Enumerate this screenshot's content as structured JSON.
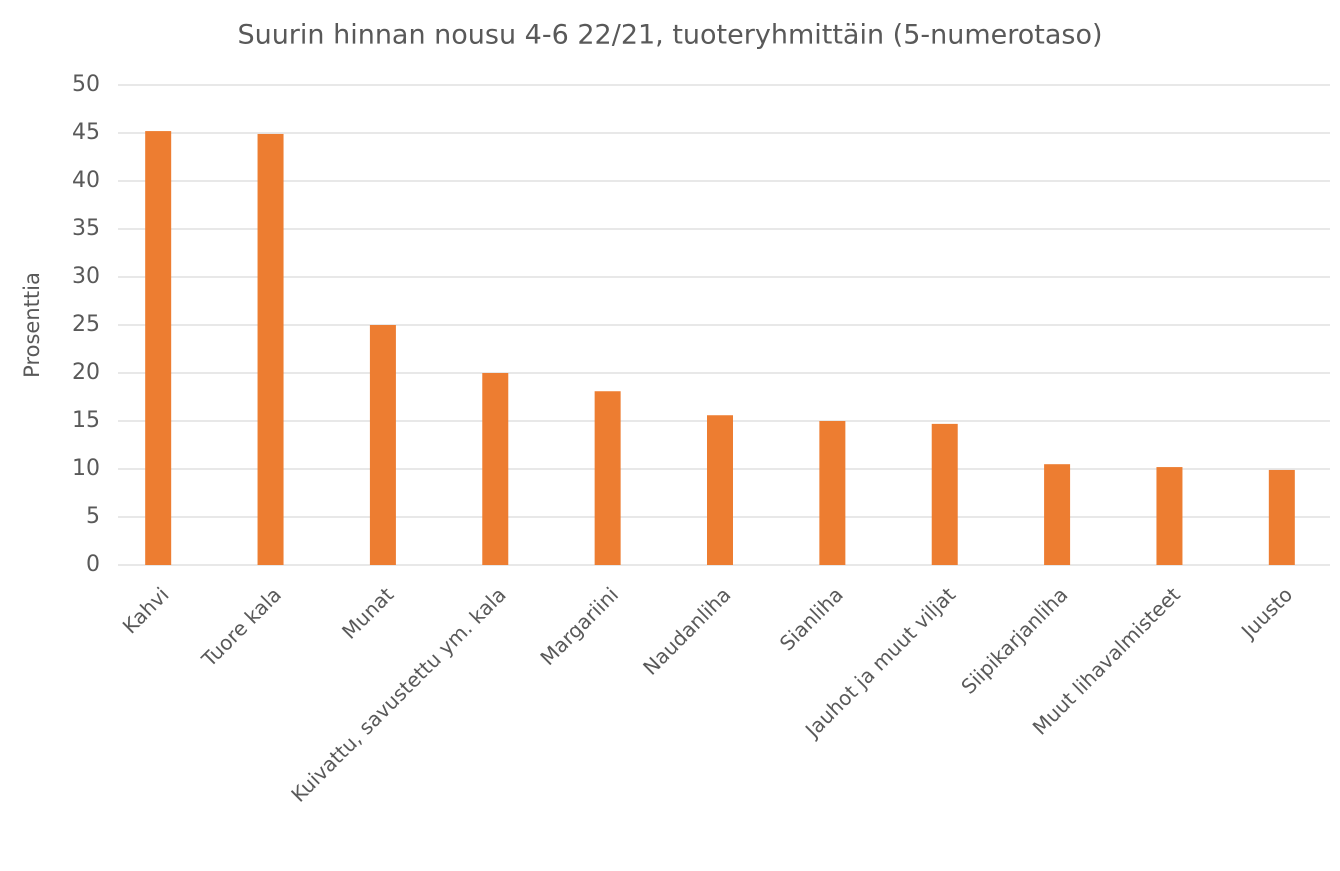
{
  "chart_data": {
    "type": "bar",
    "title": "Suurin hinnan nousu 4-6 22/21, tuoteryhmittäin (5-numerotaso)",
    "y_label": "Prosenttia",
    "categories": [
      "Kahvi",
      "Tuore kala",
      "Munat",
      "Kuivattu, savustettu ym. kala",
      "Margariini",
      "Naudanliha",
      "Sianliha",
      "Jauhot ja muut viljat",
      "Siipikarjanliha",
      "Muut lihavalmisteet",
      "Juusto"
    ],
    "values": [
      45.2,
      44.9,
      25,
      20,
      18.1,
      15.6,
      15,
      14.7,
      10.5,
      10.2,
      9.9
    ],
    "color": "#ed7d31",
    "ylim": [
      0,
      50
    ],
    "yticks": [
      0,
      5,
      10,
      15,
      20,
      25,
      30,
      35,
      40,
      45,
      50
    ],
    "grid": true
  }
}
